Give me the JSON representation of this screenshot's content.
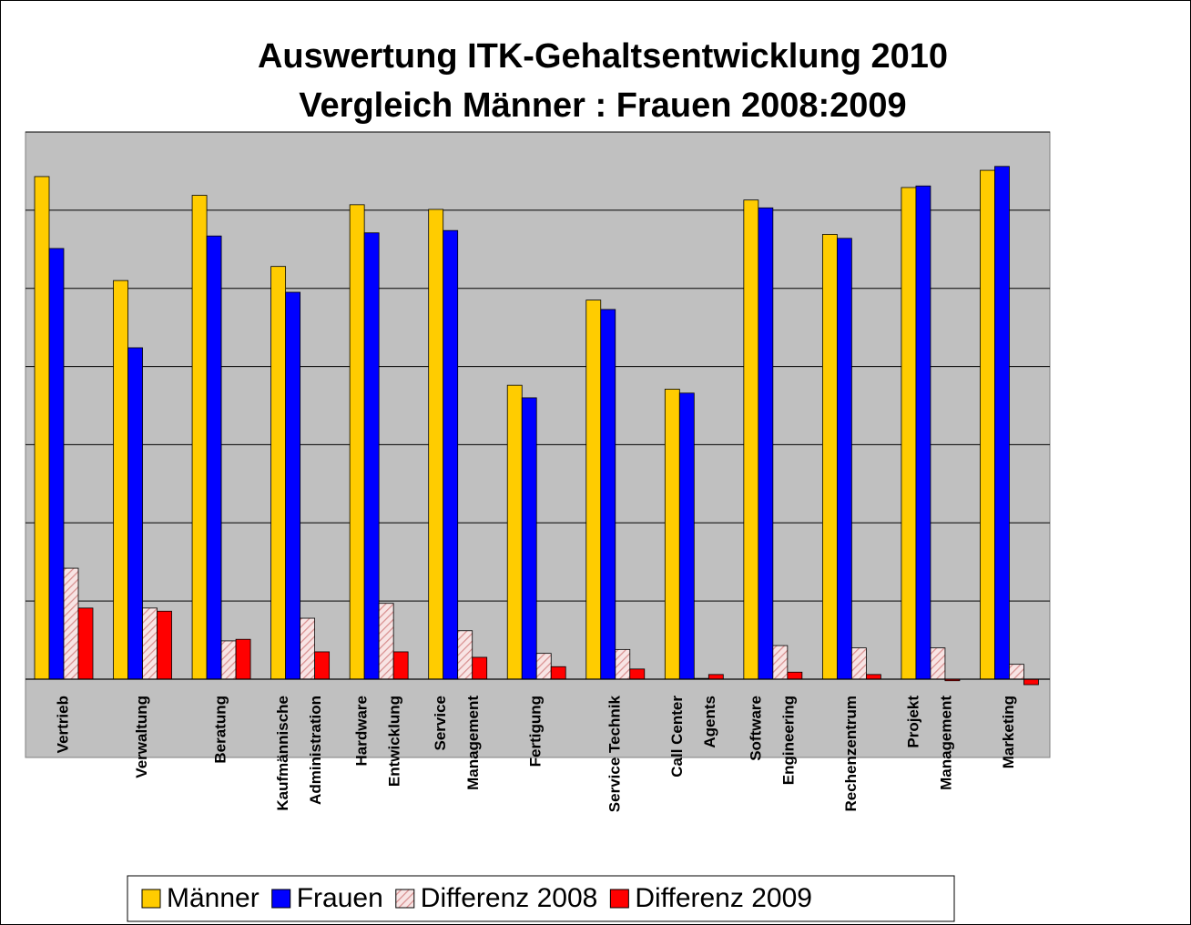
{
  "chart_data": {
    "type": "bar",
    "title": [
      "Auswertung ITK-Gehaltsentwicklung 2010",
      "Vergleich Männer : Frauen 2008:2009"
    ],
    "categories": [
      [
        "Vertrieb"
      ],
      [
        "Verwaltung"
      ],
      [
        "Beratung"
      ],
      [
        "Kaufmännische",
        "Administration"
      ],
      [
        "Hardware",
        "Entwicklung"
      ],
      [
        "Service",
        "Management"
      ],
      [
        "Fertigung"
      ],
      [
        "Service Technik"
      ],
      [
        "Call Center",
        "Agents"
      ],
      [
        "Software",
        "Engineering"
      ],
      [
        "Rechenzentrum"
      ],
      [
        "Projekt",
        "Management"
      ],
      [
        "Marketing"
      ]
    ],
    "series": [
      {
        "name": "Männer",
        "color": "#ffcc00",
        "values": [
          6.43,
          5.1,
          6.19,
          5.28,
          6.07,
          6.01,
          3.76,
          4.85,
          3.71,
          6.13,
          5.69,
          6.29,
          6.51
        ]
      },
      {
        "name": "Frauen",
        "color": "#0000ff",
        "values": [
          5.51,
          4.24,
          5.67,
          4.95,
          5.71,
          5.74,
          3.6,
          4.73,
          3.66,
          6.03,
          5.64,
          6.31,
          6.56
        ]
      },
      {
        "name": "Differenz 2008",
        "color": "#f4c4c4",
        "pattern": "hatch",
        "values": [
          1.42,
          0.91,
          0.49,
          0.78,
          0.97,
          0.62,
          0.33,
          0.38,
          0.01,
          0.43,
          0.4,
          0.4,
          0.19
        ]
      },
      {
        "name": "Differenz 2009",
        "color": "#ff0000",
        "values": [
          0.91,
          0.87,
          0.51,
          0.35,
          0.35,
          0.28,
          0.16,
          0.13,
          0.06,
          0.09,
          0.06,
          -0.02,
          -0.07
        ]
      }
    ],
    "ylim": [
      0,
      7
    ],
    "yticks": [
      0,
      1,
      2,
      3,
      4,
      5,
      6,
      7
    ],
    "grid": true,
    "legend": "bottom"
  }
}
